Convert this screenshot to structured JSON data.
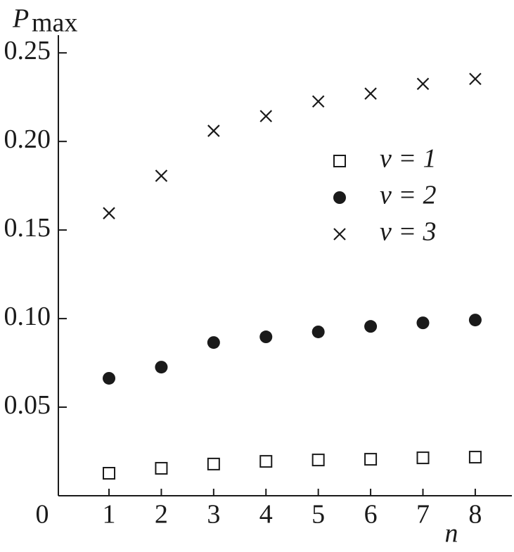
{
  "chart_data": {
    "type": "scatter",
    "y_label": "P",
    "y_label_sub": "max",
    "x_label": "n",
    "origin_label": "0",
    "x": [
      1,
      2,
      3,
      4,
      5,
      6,
      7,
      8
    ],
    "series": [
      {
        "name": "v = 1",
        "color": "#1a1a1a",
        "marker": "square",
        "values": [
          0.0127,
          0.0155,
          0.0179,
          0.0194,
          0.0202,
          0.0206,
          0.0214,
          0.0218
        ]
      },
      {
        "name": "v = 2",
        "color": "#1a1a1a",
        "marker": "circle",
        "values": [
          0.0663,
          0.0726,
          0.0865,
          0.0897,
          0.0925,
          0.0956,
          0.0976,
          0.0992
        ]
      },
      {
        "name": "v = 3",
        "color": "#1a1a1a",
        "marker": "cross",
        "values": [
          0.1595,
          0.1806,
          0.206,
          0.2143,
          0.2226,
          0.227,
          0.2325,
          0.2353
        ]
      }
    ],
    "xlim": [
      0,
      8.7
    ],
    "ylim": [
      0,
      0.26
    ],
    "xticks": [
      1,
      2,
      3,
      4,
      5,
      6,
      7,
      8
    ],
    "yticks": [
      0.05,
      {
        "value": 0.1,
        "label": "0.10"
      },
      0.15,
      {
        "value": 0.2,
        "label": "0.20"
      },
      0.25
    ],
    "grid": false
  }
}
